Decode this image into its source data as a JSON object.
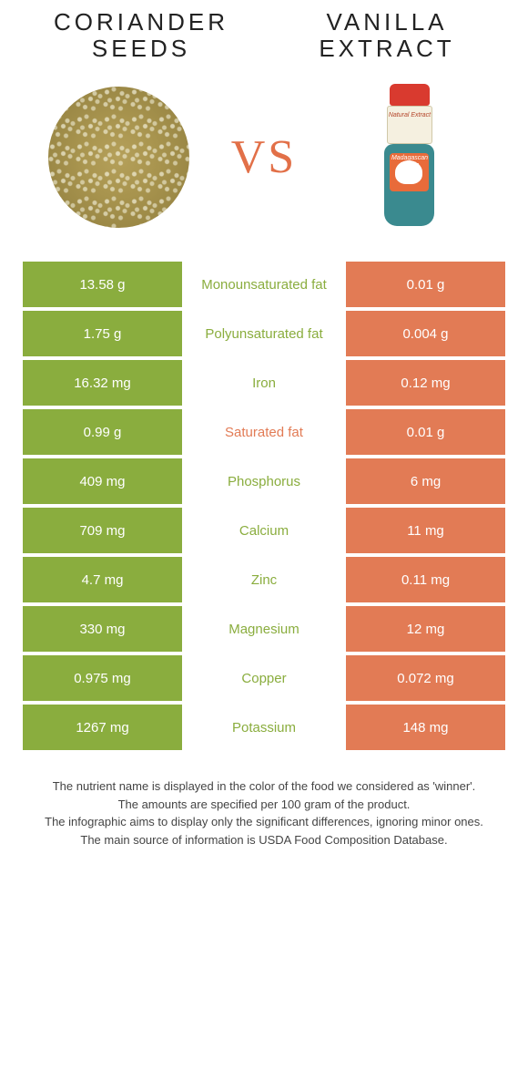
{
  "comparison": {
    "left_title": "CORIANDER SEEDS",
    "right_title": "VANILLA EXTRACT",
    "vs_label": "VS",
    "colors": {
      "left": "#8aad3e",
      "right": "#e27b55",
      "left_text": "#8aad3e",
      "right_text": "#e27b55"
    },
    "left_image_alt": "coriander-seeds",
    "right_image_alt": "vanilla-extract-bottle",
    "bottle_label_top": "Natural Extract",
    "bottle_label_body": "Madagascan Vanilla",
    "rows": [
      {
        "nutrient": "Monounsaturated fat",
        "left": "13.58 g",
        "right": "0.01 g",
        "winner": "left"
      },
      {
        "nutrient": "Polyunsaturated fat",
        "left": "1.75 g",
        "right": "0.004 g",
        "winner": "left"
      },
      {
        "nutrient": "Iron",
        "left": "16.32 mg",
        "right": "0.12 mg",
        "winner": "left"
      },
      {
        "nutrient": "Saturated fat",
        "left": "0.99 g",
        "right": "0.01 g",
        "winner": "right"
      },
      {
        "nutrient": "Phosphorus",
        "left": "409 mg",
        "right": "6 mg",
        "winner": "left"
      },
      {
        "nutrient": "Calcium",
        "left": "709 mg",
        "right": "11 mg",
        "winner": "left"
      },
      {
        "nutrient": "Zinc",
        "left": "4.7 mg",
        "right": "0.11 mg",
        "winner": "left"
      },
      {
        "nutrient": "Magnesium",
        "left": "330 mg",
        "right": "12 mg",
        "winner": "left"
      },
      {
        "nutrient": "Copper",
        "left": "0.975 mg",
        "right": "0.072 mg",
        "winner": "left"
      },
      {
        "nutrient": "Potassium",
        "left": "1267 mg",
        "right": "148 mg",
        "winner": "left"
      }
    ]
  },
  "footer": {
    "line1": "The nutrient name is displayed in the color of the food we considered as 'winner'.",
    "line2": "The amounts are specified per 100 gram of the product.",
    "line3": "The infographic aims to display only the significant differences, ignoring minor ones.",
    "line4": "The main source of information is USDA Food Composition Database."
  }
}
